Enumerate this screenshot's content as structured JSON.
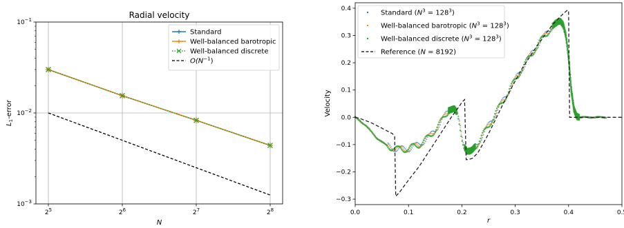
{
  "chart_data": [
    {
      "type": "line",
      "title": "Radial velocity",
      "xlabel": "N",
      "ylabel_main": "L",
      "ylabel_sub": "1",
      "ylabel_rest": "-error",
      "xscale": "log2",
      "yscale": "log10",
      "grid": true,
      "legend_position": "top-right",
      "xlim": [
        32,
        256
      ],
      "ylim": [
        0.001,
        0.1
      ],
      "x_ticks": [
        {
          "value": 32,
          "base": "2",
          "exp": "5"
        },
        {
          "value": 64,
          "base": "2",
          "exp": "6"
        },
        {
          "value": 128,
          "base": "2",
          "exp": "7"
        },
        {
          "value": 256,
          "base": "2",
          "exp": "8"
        }
      ],
      "y_ticks": [
        {
          "value": 0.001,
          "base": "10",
          "exp": "−3"
        },
        {
          "value": 0.01,
          "base": "10",
          "exp": "−2"
        },
        {
          "value": 0.1,
          "base": "10",
          "exp": "−1"
        }
      ],
      "x": [
        32,
        64,
        128,
        256
      ],
      "series": [
        {
          "name": "Standard",
          "values": [
            0.03,
            0.0155,
            0.0083,
            0.0044
          ],
          "color": "#1f77b4",
          "style": "solid",
          "marker": "plus"
        },
        {
          "name": "Well-balanced barotropic",
          "values": [
            0.03,
            0.0155,
            0.0083,
            0.0044
          ],
          "color": "#ff7f0e",
          "style": "solid",
          "marker": "plus"
        },
        {
          "name": "Well-balanced discrete",
          "values": [
            0.03,
            0.0155,
            0.0083,
            0.0044
          ],
          "color": "#2ca02c",
          "style": "dotted",
          "marker": "x"
        },
        {
          "name_prefix": "O(N",
          "name_sup": "−1",
          "name_suffix": ")",
          "values": [
            0.01,
            0.005,
            0.0025,
            0.00125
          ],
          "color": "#000000",
          "style": "dashed",
          "marker": "none"
        }
      ]
    },
    {
      "type": "scatter",
      "xlabel": "r",
      "ylabel": "Velocity",
      "xlim": [
        0.0,
        0.5
      ],
      "ylim": [
        -0.32,
        0.42
      ],
      "grid": false,
      "legend_position": "top-left",
      "x_tick_labels": [
        "0.0",
        "0.1",
        "0.2",
        "0.3",
        "0.4",
        "0.5"
      ],
      "x_tick_values": [
        0.0,
        0.1,
        0.2,
        0.3,
        0.4,
        0.5
      ],
      "y_tick_labels": [
        "−0.3",
        "−0.2",
        "−0.1",
        "0.0",
        "0.1",
        "0.2",
        "0.3",
        "0.4"
      ],
      "y_tick_values": [
        -0.3,
        -0.2,
        -0.1,
        0.0,
        0.1,
        0.2,
        0.3,
        0.4
      ],
      "legend": [
        {
          "prefix": "Standard (",
          "var": "N",
          "sup": "3",
          "mid": " = 128",
          "sup2": "3",
          "suffix": ")",
          "color": "#1f77b4",
          "kind": "dot"
        },
        {
          "prefix": "Well-balanced barotropic (",
          "var": "N",
          "sup": "3",
          "mid": " = 128",
          "sup2": "3",
          "suffix": ")",
          "color": "#ff7f0e",
          "kind": "dot"
        },
        {
          "prefix": "Well-balanced discrete (",
          "var": "N",
          "sup": "3",
          "mid": " = 128",
          "sup2": "3",
          "suffix": ")",
          "color": "#2ca02c",
          "kind": "dot"
        },
        {
          "prefix": "Reference (",
          "var": "N",
          "sup": "",
          "mid": " = 8192",
          "sup2": "",
          "suffix": ")",
          "color": "#000000",
          "kind": "dash"
        }
      ],
      "reference": {
        "x": [
          0.0,
          0.01,
          0.03,
          0.05,
          0.07,
          0.074,
          0.076,
          0.085,
          0.1,
          0.12,
          0.14,
          0.16,
          0.18,
          0.195,
          0.2,
          0.205,
          0.208,
          0.212,
          0.22,
          0.23,
          0.25,
          0.28,
          0.31,
          0.34,
          0.37,
          0.39,
          0.398,
          0.4,
          0.402,
          0.43,
          0.5
        ],
        "y": [
          0.0,
          -0.005,
          -0.02,
          -0.04,
          -0.06,
          -0.07,
          -0.29,
          -0.27,
          -0.23,
          -0.18,
          -0.12,
          -0.06,
          0.0,
          0.04,
          0.055,
          0.065,
          -0.155,
          -0.155,
          -0.15,
          -0.13,
          -0.06,
          0.06,
          0.17,
          0.26,
          0.34,
          0.38,
          0.393,
          0.39,
          0.0,
          0.0,
          0.0
        ]
      },
      "numerical": {
        "x": [
          0.0,
          0.02,
          0.04,
          0.06,
          0.08,
          0.1,
          0.12,
          0.14,
          0.16,
          0.175,
          0.185,
          0.19,
          0.195,
          0.2,
          0.205,
          0.21,
          0.215,
          0.22,
          0.23,
          0.25,
          0.28,
          0.31,
          0.34,
          0.36,
          0.37,
          0.38,
          0.385,
          0.39,
          0.395,
          0.4,
          0.405,
          0.41,
          0.415,
          0.42,
          0.5
        ],
        "y": [
          0.0,
          -0.03,
          -0.075,
          -0.105,
          -0.118,
          -0.115,
          -0.1,
          -0.07,
          -0.02,
          0.025,
          0.032,
          0.02,
          -0.02,
          -0.07,
          -0.11,
          -0.125,
          -0.125,
          -0.118,
          -0.095,
          -0.03,
          0.07,
          0.17,
          0.26,
          0.31,
          0.335,
          0.35,
          0.352,
          0.34,
          0.3,
          0.22,
          0.1,
          0.03,
          0.005,
          0.0,
          0.0
        ]
      }
    }
  ]
}
